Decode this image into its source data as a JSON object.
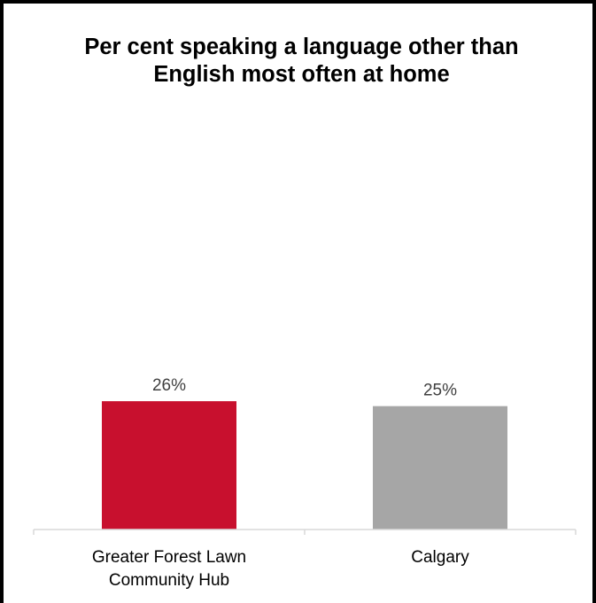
{
  "chart_data": {
    "type": "bar",
    "title": "Per cent speaking a language other than English most often at home",
    "categories": [
      [
        "Greater Forest Lawn",
        "Community Hub"
      ],
      [
        "Calgary"
      ]
    ],
    "values": [
      26,
      25
    ],
    "data_labels": [
      "26%",
      "25%"
    ],
    "colors": [
      "#c8102e",
      "#a6a6a6"
    ],
    "xlabel": "",
    "ylabel": "",
    "ylim": [
      0,
      75
    ],
    "grid": false,
    "legend": "none"
  }
}
